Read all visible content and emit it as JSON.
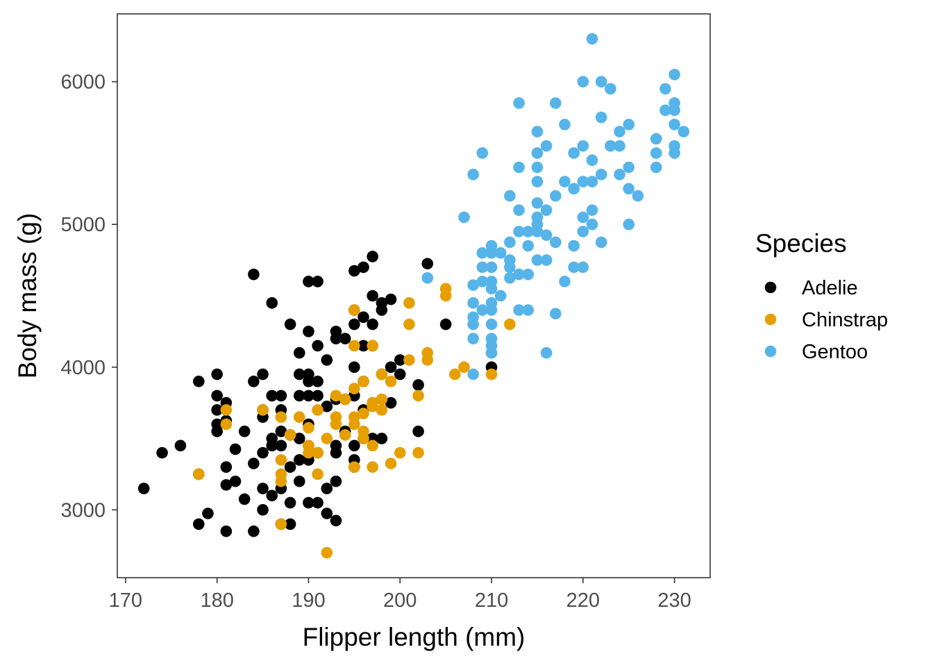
{
  "chart_data": {
    "type": "scatter",
    "xlabel": "Flipper length (mm)",
    "ylabel": "Body mass (g)",
    "xlim": [
      169.1,
      233.9
    ],
    "ylim": [
      2525,
      6475
    ],
    "x_ticks": [
      170,
      180,
      190,
      200,
      210,
      220,
      230
    ],
    "y_ticks": [
      3000,
      4000,
      5000,
      6000
    ],
    "grid": false,
    "legend": {
      "title": "Species",
      "position": "right"
    },
    "series": [
      {
        "name": "Adelie",
        "color": "#000000",
        "points": [
          [
            172,
            3150
          ],
          [
            174,
            3400
          ],
          [
            176,
            3450
          ],
          [
            178,
            3900
          ],
          [
            178,
            2900
          ],
          [
            178,
            3250
          ],
          [
            179,
            2975
          ],
          [
            180,
            3950
          ],
          [
            180,
            3800
          ],
          [
            180,
            3700
          ],
          [
            180,
            3600
          ],
          [
            180,
            3550
          ],
          [
            181,
            3750
          ],
          [
            181,
            3625
          ],
          [
            181,
            3300
          ],
          [
            181,
            3175
          ],
          [
            181,
            2850
          ],
          [
            182,
            3425
          ],
          [
            182,
            3200
          ],
          [
            183,
            3550
          ],
          [
            183,
            3075
          ],
          [
            184,
            4650
          ],
          [
            184,
            3900
          ],
          [
            184,
            3325
          ],
          [
            184,
            2850
          ],
          [
            185,
            3950
          ],
          [
            185,
            3700
          ],
          [
            185,
            3650
          ],
          [
            185,
            3400
          ],
          [
            185,
            3150
          ],
          [
            185,
            3000
          ],
          [
            186,
            4450
          ],
          [
            186,
            3800
          ],
          [
            186,
            3500
          ],
          [
            186,
            3450
          ],
          [
            186,
            3100
          ],
          [
            187,
            3800
          ],
          [
            187,
            3700
          ],
          [
            187,
            3550
          ],
          [
            187,
            3450
          ],
          [
            187,
            3150
          ],
          [
            187,
            2900
          ],
          [
            188,
            4300
          ],
          [
            188,
            3525
          ],
          [
            188,
            3300
          ],
          [
            188,
            3050
          ],
          [
            188,
            2900
          ],
          [
            189,
            4100
          ],
          [
            189,
            3950
          ],
          [
            189,
            3800
          ],
          [
            189,
            3500
          ],
          [
            189,
            3350
          ],
          [
            189,
            3200
          ],
          [
            190,
            4600
          ],
          [
            190,
            4250
          ],
          [
            190,
            3950
          ],
          [
            190,
            3900
          ],
          [
            190,
            3800
          ],
          [
            190,
            3600
          ],
          [
            190,
            3450
          ],
          [
            190,
            3350
          ],
          [
            190,
            3050
          ],
          [
            191,
            4600
          ],
          [
            191,
            4150
          ],
          [
            191,
            3900
          ],
          [
            191,
            3800
          ],
          [
            191,
            3400
          ],
          [
            191,
            3050
          ],
          [
            192,
            4050
          ],
          [
            192,
            3725
          ],
          [
            192,
            3150
          ],
          [
            192,
            2975
          ],
          [
            193,
            4250
          ],
          [
            193,
            4200
          ],
          [
            193,
            3775
          ],
          [
            193,
            3450
          ],
          [
            193,
            3400
          ],
          [
            193,
            3200
          ],
          [
            193,
            2925
          ],
          [
            194,
            4200
          ],
          [
            194,
            3775
          ],
          [
            194,
            3550
          ],
          [
            195,
            4675
          ],
          [
            195,
            4400
          ],
          [
            195,
            4300
          ],
          [
            195,
            4000
          ],
          [
            195,
            3800
          ],
          [
            195,
            3450
          ],
          [
            195,
            3350
          ],
          [
            195,
            3300
          ],
          [
            196,
            4700
          ],
          [
            196,
            4350
          ],
          [
            196,
            4150
          ],
          [
            196,
            3900
          ],
          [
            196,
            3700
          ],
          [
            196,
            3500
          ],
          [
            197,
            4775
          ],
          [
            197,
            4500
          ],
          [
            197,
            4300
          ],
          [
            197,
            4150
          ],
          [
            197,
            3750
          ],
          [
            197,
            3500
          ],
          [
            198,
            4450
          ],
          [
            198,
            4400
          ],
          [
            198,
            3950
          ],
          [
            198,
            3500
          ],
          [
            199,
            4475
          ],
          [
            199,
            4000
          ],
          [
            199,
            3750
          ],
          [
            200,
            4050
          ],
          [
            200,
            3950
          ],
          [
            202,
            3875
          ],
          [
            202,
            3550
          ],
          [
            203,
            4725
          ],
          [
            205,
            4300
          ],
          [
            210,
            4000
          ]
        ]
      },
      {
        "name": "Chinstrap",
        "color": "#E69F00",
        "points": [
          [
            178,
            3250
          ],
          [
            181,
            3700
          ],
          [
            181,
            3600
          ],
          [
            185,
            3700
          ],
          [
            187,
            3650
          ],
          [
            187,
            3350
          ],
          [
            187,
            3250
          ],
          [
            187,
            3200
          ],
          [
            187,
            2900
          ],
          [
            188,
            3525
          ],
          [
            189,
            3650
          ],
          [
            190,
            3575
          ],
          [
            190,
            3450
          ],
          [
            190,
            3400
          ],
          [
            191,
            3700
          ],
          [
            191,
            3400
          ],
          [
            191,
            3250
          ],
          [
            192,
            3500
          ],
          [
            192,
            2700
          ],
          [
            193,
            3800
          ],
          [
            193,
            3650
          ],
          [
            193,
            3600
          ],
          [
            194,
            3775
          ],
          [
            194,
            3525
          ],
          [
            195,
            4400
          ],
          [
            195,
            4150
          ],
          [
            195,
            3850
          ],
          [
            195,
            3650
          ],
          [
            195,
            3600
          ],
          [
            195,
            3300
          ],
          [
            196,
            3900
          ],
          [
            196,
            3675
          ],
          [
            196,
            3550
          ],
          [
            196,
            3500
          ],
          [
            197,
            4150
          ],
          [
            197,
            3750
          ],
          [
            197,
            3725
          ],
          [
            197,
            3450
          ],
          [
            197,
            3300
          ],
          [
            198,
            3950
          ],
          [
            198,
            3775
          ],
          [
            198,
            3700
          ],
          [
            199,
            3900
          ],
          [
            199,
            3325
          ],
          [
            200,
            3400
          ],
          [
            201,
            4450
          ],
          [
            201,
            4300
          ],
          [
            201,
            4050
          ],
          [
            202,
            3800
          ],
          [
            202,
            3400
          ],
          [
            203,
            4100
          ],
          [
            203,
            4050
          ],
          [
            205,
            4550
          ],
          [
            205,
            4500
          ],
          [
            206,
            3950
          ],
          [
            207,
            4000
          ],
          [
            210,
            4800
          ],
          [
            210,
            4100
          ],
          [
            210,
            3950
          ],
          [
            212,
            4300
          ]
        ]
      },
      {
        "name": "Gentoo",
        "color": "#56B4E9",
        "points": [
          [
            203,
            4625
          ],
          [
            207,
            5050
          ],
          [
            208,
            5350
          ],
          [
            208,
            4575
          ],
          [
            208,
            4450
          ],
          [
            208,
            4350
          ],
          [
            208,
            4300
          ],
          [
            208,
            4200
          ],
          [
            208,
            3950
          ],
          [
            209,
            5500
          ],
          [
            209,
            4800
          ],
          [
            209,
            4700
          ],
          [
            209,
            4600
          ],
          [
            209,
            4400
          ],
          [
            210,
            4850
          ],
          [
            210,
            4800
          ],
          [
            210,
            4700
          ],
          [
            210,
            4600
          ],
          [
            210,
            4550
          ],
          [
            210,
            4450
          ],
          [
            210,
            4400
          ],
          [
            210,
            4300
          ],
          [
            210,
            4200
          ],
          [
            210,
            4150
          ],
          [
            210,
            4100
          ],
          [
            211,
            4800
          ],
          [
            211,
            4500
          ],
          [
            212,
            5200
          ],
          [
            212,
            4875
          ],
          [
            212,
            4750
          ],
          [
            212,
            4700
          ],
          [
            212,
            4625
          ],
          [
            213,
            5850
          ],
          [
            213,
            5400
          ],
          [
            213,
            5100
          ],
          [
            213,
            4950
          ],
          [
            213,
            4650
          ],
          [
            213,
            4400
          ],
          [
            214,
            4950
          ],
          [
            214,
            4850
          ],
          [
            214,
            4650
          ],
          [
            214,
            4400
          ],
          [
            215,
            5650
          ],
          [
            215,
            5500
          ],
          [
            215,
            5400
          ],
          [
            215,
            5300
          ],
          [
            215,
            5150
          ],
          [
            215,
            5050
          ],
          [
            215,
            5000
          ],
          [
            215,
            4950
          ],
          [
            215,
            4750
          ],
          [
            216,
            5550
          ],
          [
            216,
            5100
          ],
          [
            216,
            4925
          ],
          [
            216,
            4750
          ],
          [
            216,
            4100
          ],
          [
            217,
            5850
          ],
          [
            217,
            5200
          ],
          [
            217,
            4875
          ],
          [
            217,
            4375
          ],
          [
            218,
            5700
          ],
          [
            218,
            5300
          ],
          [
            218,
            4600
          ],
          [
            219,
            5500
          ],
          [
            219,
            5250
          ],
          [
            219,
            4850
          ],
          [
            219,
            4700
          ],
          [
            220,
            6000
          ],
          [
            220,
            5550
          ],
          [
            220,
            5300
          ],
          [
            220,
            5050
          ],
          [
            220,
            4950
          ],
          [
            220,
            4700
          ],
          [
            221,
            6300
          ],
          [
            221,
            5450
          ],
          [
            221,
            5300
          ],
          [
            221,
            5100
          ],
          [
            221,
            5000
          ],
          [
            222,
            6000
          ],
          [
            222,
            5750
          ],
          [
            222,
            5350
          ],
          [
            222,
            4875
          ],
          [
            223,
            5950
          ],
          [
            223,
            5550
          ],
          [
            224,
            5550
          ],
          [
            224,
            5350
          ],
          [
            224,
            5650
          ],
          [
            225,
            5700
          ],
          [
            225,
            5400
          ],
          [
            225,
            5250
          ],
          [
            225,
            5000
          ],
          [
            226,
            5200
          ],
          [
            228,
            5600
          ],
          [
            228,
            5500
          ],
          [
            228,
            5400
          ],
          [
            229,
            5950
          ],
          [
            229,
            5800
          ],
          [
            230,
            6050
          ],
          [
            230,
            5850
          ],
          [
            230,
            5800
          ],
          [
            230,
            5700
          ],
          [
            230,
            5550
          ],
          [
            230,
            5500
          ],
          [
            231,
            5650
          ]
        ]
      }
    ]
  }
}
